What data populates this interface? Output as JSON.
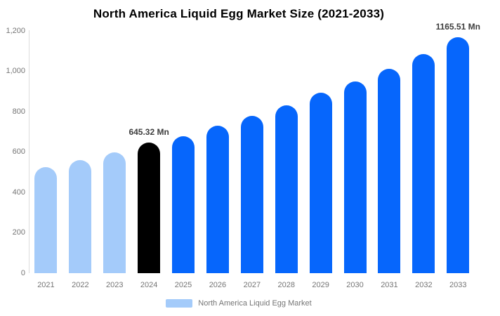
{
  "title": "North America Liquid Egg Market Size (2021-2033)",
  "chart_data": {
    "type": "bar",
    "title": "North America Liquid Egg Market Size (2021-2033)",
    "series_name": "North America Liquid Egg Market",
    "categories": [
      "2021",
      "2022",
      "2023",
      "2024",
      "2025",
      "2026",
      "2027",
      "2028",
      "2029",
      "2030",
      "2031",
      "2032",
      "2033"
    ],
    "values": [
      526,
      559,
      598,
      645.32,
      679,
      731,
      778,
      830,
      891,
      947,
      1012,
      1083,
      1165.51
    ],
    "bar_colors": [
      "#A4CBFA",
      "#A4CBFA",
      "#A4CBFA",
      "#000000",
      "#0666FC",
      "#0666FC",
      "#0666FC",
      "#0666FC",
      "#0666FC",
      "#0666FC",
      "#0666FC",
      "#0666FC",
      "#0666FC"
    ],
    "annotations": [
      {
        "category": "2024",
        "text": "645.32 Mn"
      },
      {
        "category": "2033",
        "text": "1165.51 Mn"
      }
    ],
    "ylim": [
      0,
      1200
    ],
    "yticks": [
      {
        "value": 0,
        "label": "0"
      },
      {
        "value": 200,
        "label": "200"
      },
      {
        "value": 400,
        "label": "400"
      },
      {
        "value": 600,
        "label": "600"
      },
      {
        "value": 800,
        "label": "800"
      },
      {
        "value": 1000,
        "label": "1,000"
      },
      {
        "value": 1200,
        "label": "1,200"
      }
    ],
    "xlabel": "",
    "ylabel": "",
    "grid": false,
    "legend_position": "bottom"
  },
  "legend": {
    "label": "North America Liquid Egg Market",
    "swatch_color": "#A4CBFA"
  },
  "colors": {
    "historical_bar": "#A4CBFA",
    "base_year_bar": "#000000",
    "forecast_bar": "#0666FC",
    "axis_line": "#DDDDDD",
    "tick_text": "#757575",
    "annotation_text": "#3D3D3D",
    "title_text": "#000000"
  }
}
